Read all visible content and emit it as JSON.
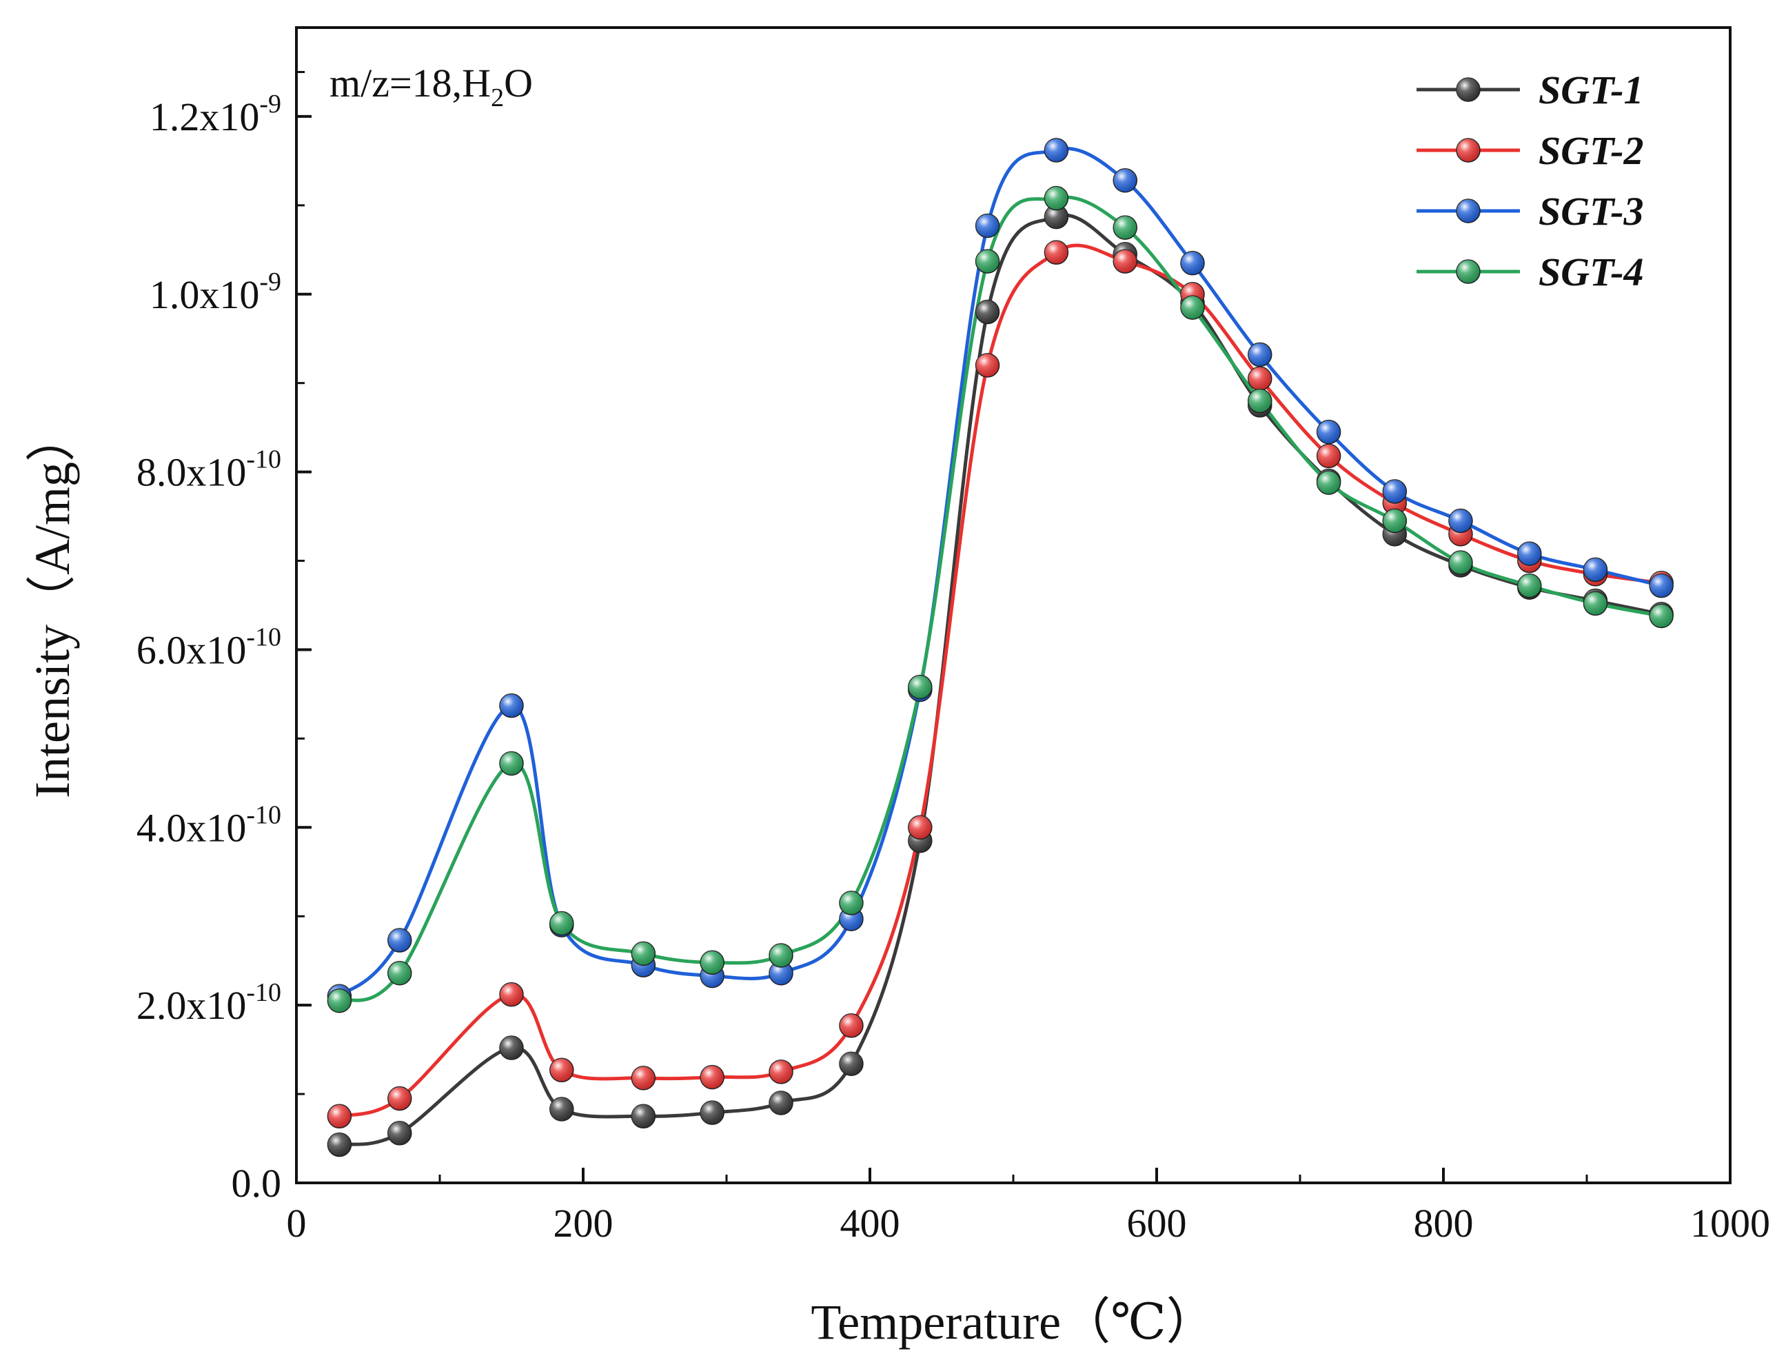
{
  "chart_data": {
    "type": "line",
    "title": "",
    "annotation": {
      "prefix": "m/z=18,H",
      "subscript": "2",
      "suffix": "O"
    },
    "xlabel": "Temperature（℃）",
    "ylabel": "Intensity（A/mg）",
    "xlim": [
      0,
      1000
    ],
    "ylim": [
      0,
      1.3e-09
    ],
    "x_ticks": [
      {
        "value": 0,
        "label": "0"
      },
      {
        "value": 200,
        "label": "200"
      },
      {
        "value": 400,
        "label": "400"
      },
      {
        "value": 600,
        "label": "600"
      },
      {
        "value": 800,
        "label": "800"
      },
      {
        "value": 1000,
        "label": "1000"
      }
    ],
    "y_ticks": [
      {
        "value": 0,
        "mantissa": "0.0",
        "exponent": ""
      },
      {
        "value": 2e-10,
        "mantissa": "2.0x10",
        "exponent": "-10"
      },
      {
        "value": 4e-10,
        "mantissa": "4.0x10",
        "exponent": "-10"
      },
      {
        "value": 6e-10,
        "mantissa": "6.0x10",
        "exponent": "-10"
      },
      {
        "value": 8e-10,
        "mantissa": "8.0x10",
        "exponent": "-10"
      },
      {
        "value": 1e-09,
        "mantissa": "1.0x10",
        "exponent": "-9"
      },
      {
        "value": 1.2e-09,
        "mantissa": "1.2x10",
        "exponent": "-9"
      }
    ],
    "legend_position": "top-right",
    "x": [
      30,
      72,
      150,
      185,
      242,
      290,
      338,
      387,
      435,
      482,
      530,
      578,
      625,
      672,
      720,
      766,
      812,
      860,
      906,
      952
    ],
    "series": [
      {
        "name": "SGT-1",
        "color": "#3a3a3a",
        "values": [
          4.3e-11,
          5.6e-11,
          1.52e-10,
          8.3e-11,
          7.5e-11,
          7.9e-11,
          9e-11,
          1.34e-10,
          3.85e-10,
          9.8e-10,
          1.087e-09,
          1.045e-09,
          9.9e-10,
          8.75e-10,
          7.9e-10,
          7.3e-10,
          6.95e-10,
          6.7e-10,
          6.55e-10,
          6.4e-10
        ]
      },
      {
        "name": "SGT-2",
        "color": "#e8312f",
        "values": [
          7.5e-11,
          9.5e-11,
          2.12e-10,
          1.27e-10,
          1.18e-10,
          1.19e-10,
          1.25e-10,
          1.77e-10,
          4e-10,
          9.2e-10,
          1.047e-09,
          1.037e-09,
          1e-09,
          9.05e-10,
          8.18e-10,
          7.65e-10,
          7.3e-10,
          7e-10,
          6.85e-10,
          6.75e-10
        ]
      },
      {
        "name": "SGT-3",
        "color": "#2060d8",
        "values": [
          2.1e-10,
          2.73e-10,
          5.37e-10,
          2.9e-10,
          2.45e-10,
          2.33e-10,
          2.36e-10,
          2.97e-10,
          5.55e-10,
          1.077e-09,
          1.162e-09,
          1.128e-09,
          1.035e-09,
          9.32e-10,
          8.45e-10,
          7.78e-10,
          7.45e-10,
          7.08e-10,
          6.9e-10,
          6.72e-10
        ]
      },
      {
        "name": "SGT-4",
        "color": "#2aa35a",
        "values": [
          2.05e-10,
          2.36e-10,
          4.72e-10,
          2.92e-10,
          2.58e-10,
          2.48e-10,
          2.56e-10,
          3.15e-10,
          5.58e-10,
          1.037e-09,
          1.108e-09,
          1.075e-09,
          9.85e-10,
          8.8e-10,
          7.88e-10,
          7.45e-10,
          6.98e-10,
          6.72e-10,
          6.52e-10,
          6.38e-10
        ]
      }
    ]
  }
}
